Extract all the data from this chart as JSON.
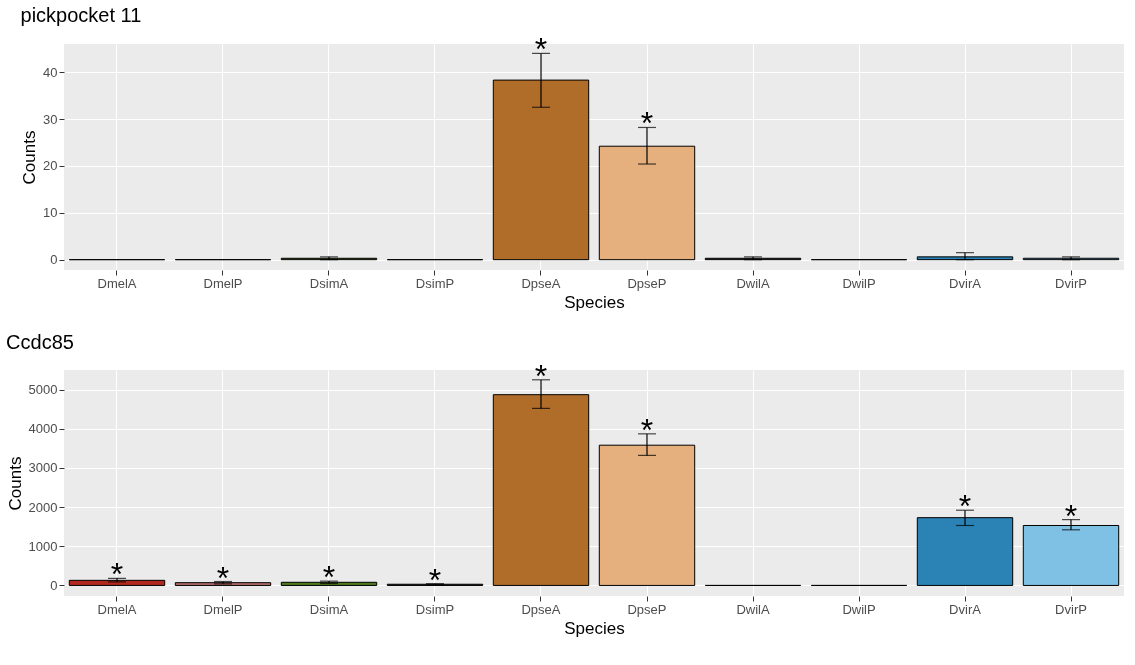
{
  "chart_data": [
    {
      "type": "bar",
      "title": "pickpocket 11",
      "xlabel": "Species",
      "ylabel": "Counts",
      "categories": [
        "DmelA",
        "DmelP",
        "DsimA",
        "DsimP",
        "DpseA",
        "DpseP",
        "DwilA",
        "DwilP",
        "DvirA",
        "DvirP"
      ],
      "values": [
        0,
        0,
        0.3,
        0,
        38.3,
        24.2,
        0.3,
        0,
        0.6,
        0.3
      ],
      "errors": [
        null,
        null,
        0.3,
        null,
        [
          32.5,
          44
        ],
        [
          20.4,
          28.2
        ],
        0.3,
        null,
        [
          0,
          1.5
        ],
        0.3
      ],
      "value_labels": [
        null,
        null,
        null,
        null,
        "*",
        "*",
        null,
        null,
        null,
        null
      ],
      "colors": [
        "#000000",
        "#000000",
        "#4f7a1c",
        "#000000",
        "#b06d2a",
        "#e5b07e",
        "#444444",
        "#000000",
        "#2b83b5",
        "#7fc1e4"
      ],
      "ylim": [
        -2.2,
        46
      ],
      "yticks": [
        0,
        10,
        20,
        30,
        40
      ],
      "grid": true
    },
    {
      "type": "bar",
      "title": "Ccdc85",
      "xlabel": "Species",
      "ylabel": "Counts",
      "categories": [
        "DmelA",
        "DmelP",
        "DsimA",
        "DsimP",
        "DpseA",
        "DpseP",
        "DwilA",
        "DwilP",
        "DvirA",
        "DvirP"
      ],
      "values": [
        130,
        70,
        80,
        30,
        4870,
        3580,
        0,
        0,
        1730,
        1530
      ],
      "errors": [
        [
          90,
          180
        ],
        [
          40,
          100
        ],
        [
          50,
          110
        ],
        [
          15,
          45
        ],
        [
          4520,
          5250
        ],
        [
          3320,
          3870
        ],
        null,
        null,
        [
          1530,
          1920
        ],
        [
          1420,
          1680
        ]
      ],
      "value_labels": [
        "*",
        "*",
        "*",
        "*",
        "*",
        "*",
        null,
        null,
        "*",
        "*"
      ],
      "colors": [
        "#b2281e",
        "#b56a6a",
        "#4f7a1c",
        "#333333",
        "#b06d2a",
        "#e5b07e",
        "#000000",
        "#000000",
        "#2b83b5",
        "#7fc1e4"
      ],
      "ylim": [
        -270,
        5500
      ],
      "yticks": [
        0,
        1000,
        2000,
        3000,
        4000,
        5000
      ],
      "grid": true
    }
  ]
}
